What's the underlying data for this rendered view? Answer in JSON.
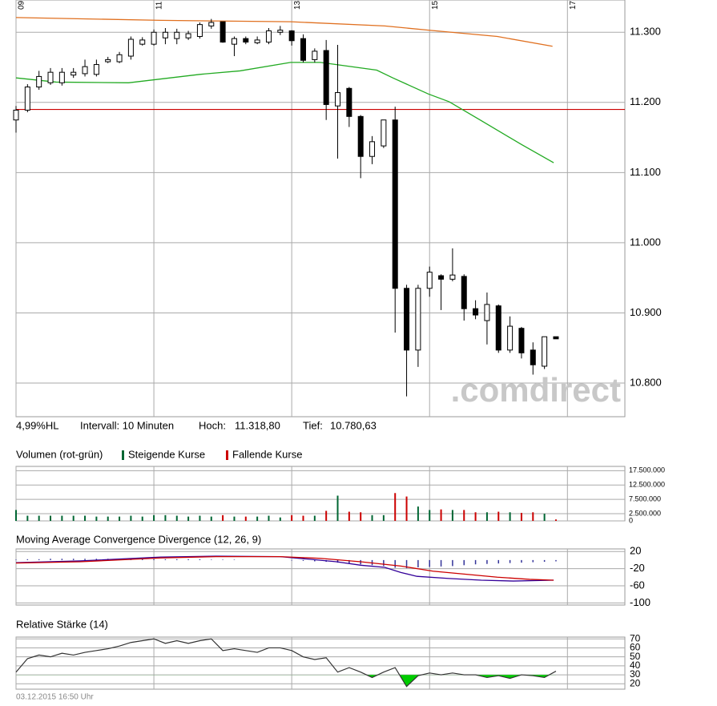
{
  "chart_data": [
    {
      "type": "candlestick",
      "info": [
        "4,99%HL",
        "Intervall: 10 Minuten",
        "Hoch:",
        "11.318,80",
        "Tief:",
        "10.780,63"
      ],
      "watermark": ".comdirect",
      "x": [
        540,
        550,
        560,
        570,
        580,
        590,
        600,
        610,
        620,
        630,
        640,
        650,
        660,
        670,
        680,
        690,
        700,
        710,
        720,
        730,
        740,
        750,
        760,
        770,
        780,
        790,
        800,
        810,
        820,
        830,
        840,
        850,
        860,
        870,
        880,
        890,
        900,
        910,
        920,
        930,
        940,
        950,
        960,
        970,
        980,
        990,
        1000,
        1010
      ],
      "open": [
        11175,
        11189,
        11222,
        11228,
        11228,
        11239,
        11241,
        11240,
        11258,
        11258,
        11266,
        11283,
        11283,
        11292,
        11291,
        11292,
        11294,
        11309,
        11315,
        11283,
        11291,
        11285,
        11286,
        11300,
        11302,
        11291,
        11261,
        11274,
        11195,
        11220,
        11180,
        11123,
        11138,
        11175,
        10935,
        10847,
        10935,
        10953,
        10948,
        10952,
        10906,
        10889,
        10910,
        10847,
        10878,
        10847,
        10824,
        10866
      ],
      "high": [
        11195,
        11226,
        11245,
        11249,
        11249,
        11249,
        11261,
        11261,
        11265,
        11272,
        11294,
        11293,
        11304,
        11306,
        11305,
        11302,
        11314,
        11319,
        11315,
        11294,
        11294,
        11294,
        11306,
        11309,
        11303,
        11297,
        11277,
        11289,
        11282,
        11222,
        11182,
        11152,
        11174,
        11194,
        10940,
        10940,
        10966,
        10955,
        10992,
        10955,
        10918,
        10929,
        10912,
        10895,
        10880,
        10858,
        10866,
        10866
      ],
      "low": [
        11157,
        11186,
        11218,
        11225,
        11224,
        11235,
        11237,
        11237,
        11256,
        11256,
        11261,
        11281,
        11281,
        11283,
        11283,
        11289,
        11291,
        11305,
        11285,
        11266,
        11283,
        11283,
        11283,
        11296,
        11281,
        11257,
        11257,
        11175,
        11120,
        11165,
        11092,
        11112,
        11135,
        10872,
        10781,
        10823,
        10923,
        10904,
        10945,
        10889,
        10891,
        10855,
        10843,
        10843,
        10835,
        10812,
        10820,
        10863
      ],
      "close": [
        11189,
        11222,
        11237,
        11243,
        11243,
        11243,
        11251,
        11254,
        11261,
        11268,
        11290,
        11289,
        11300,
        11300,
        11300,
        11298,
        11311,
        11314,
        11286,
        11291,
        11286,
        11289,
        11302,
        11303,
        11288,
        11260,
        11273,
        11197,
        11214,
        11180,
        11123,
        11144,
        11175,
        10935,
        10847,
        10935,
        10958,
        10948,
        10954,
        10906,
        10897,
        10912,
        10847,
        10881,
        10843,
        10826,
        10866,
        10863
      ],
      "lines": [
        {
          "color": "#e07020",
          "x": [
            540,
            666,
            779,
            861,
            899,
            959,
            1007
          ],
          "values": [
            11321,
            11317,
            11315,
            11309,
            11303,
            11294,
            11280
          ]
        },
        {
          "color": "#22aa22",
          "x": [
            540,
            575,
            638,
            700,
            735,
            779,
            805,
            854,
            868,
            899,
            917,
            945,
            980,
            1008
          ],
          "values": [
            11235,
            11229,
            11228,
            11240,
            11245,
            11257,
            11257,
            11246,
            11235,
            11212,
            11201,
            11174,
            11140,
            11114
          ]
        }
      ],
      "reference_line": 11190,
      "reference_color": "#cc0000",
      "xlim": [
        540,
        1070
      ],
      "xticks": [
        {
          "value": 540,
          "label": "09"
        },
        {
          "value": 660,
          "label": "11"
        },
        {
          "value": 780,
          "label": "13"
        },
        {
          "value": 900,
          "label": "15"
        },
        {
          "value": 1020,
          "label": "17"
        }
      ],
      "ylim": [
        10752,
        11346
      ],
      "yticks": [
        {
          "value": 10800,
          "label": "10.800"
        },
        {
          "value": 10900,
          "label": "10.900"
        },
        {
          "value": 11000,
          "label": "11.000"
        },
        {
          "value": 11100,
          "label": "11.100"
        },
        {
          "value": 11200,
          "label": "11.200"
        },
        {
          "value": 11300,
          "label": "11.300"
        }
      ],
      "grid": true
    },
    {
      "type": "volume",
      "title": "Volumen (rot-grün)",
      "legend": [
        {
          "label": "Steigende Kurse",
          "color": "#006633"
        },
        {
          "label": "Fallende Kurse",
          "color": "#cc0000"
        }
      ],
      "values": [
        3800000,
        1800000,
        1800000,
        1800000,
        1800000,
        1800000,
        1800000,
        1500000,
        1500000,
        1500000,
        1800000,
        1500000,
        2000000,
        2000000,
        1800000,
        1500000,
        1800000,
        1500000,
        2000000,
        1500000,
        1500000,
        1500000,
        1800000,
        1200000,
        2000000,
        1800000,
        1800000,
        3500000,
        8800000,
        3200000,
        3000000,
        2000000,
        2000000,
        9700000,
        8500000,
        5000000,
        3800000,
        4000000,
        3800000,
        3800000,
        3000000,
        3000000,
        3200000,
        3000000,
        2800000,
        3000000,
        2500000,
        500000
      ],
      "ylim": [
        0,
        19000000
      ],
      "yticks": [
        0,
        {
          "value": 2500000,
          "label": "2.500.000"
        },
        {
          "value": 7500000,
          "label": "7.500.000"
        },
        {
          "value": 12500000,
          "label": "12.500.000"
        },
        {
          "value": 17500000,
          "label": "17.500.000"
        }
      ]
    },
    {
      "type": "macd",
      "title": "Moving Average Convergence Divergence (12, 26, 9)",
      "histogram": [
        1,
        2,
        2,
        3,
        3,
        3,
        3,
        3,
        3,
        2,
        2,
        2,
        2,
        2,
        2,
        2,
        2,
        1,
        1,
        1,
        0,
        0,
        0,
        0,
        -1,
        -2,
        -3,
        -4,
        -6,
        -8,
        -10,
        -12,
        -14,
        -18,
        -19,
        -17,
        -16,
        -15,
        -14,
        -12,
        -10,
        -9,
        -8,
        -7,
        -6,
        -5,
        -4,
        -3
      ],
      "histogram_color": "#333399",
      "lines": [
        {
          "color": "#330099",
          "x": [
            540,
            596,
            666,
            714,
            770,
            791,
            819,
            840,
            861,
            875,
            889,
            917,
            945,
            973,
            1008
          ],
          "values": [
            -6,
            -2,
            7,
            9,
            8,
            3,
            -4,
            -12,
            -17,
            -29,
            -38,
            -43,
            -47,
            -49,
            -47
          ]
        },
        {
          "color": "#cc0000",
          "x": [
            540,
            596,
            666,
            714,
            770,
            805,
            840,
            875,
            903,
            931,
            959,
            987,
            1008
          ],
          "values": [
            -7,
            -4,
            5,
            8,
            8,
            4,
            -4,
            -14,
            -26,
            -33,
            -40,
            -45,
            -47
          ]
        }
      ],
      "ylim": [
        -105,
        26
      ],
      "yticks": [
        -100,
        -60,
        -20,
        20
      ]
    },
    {
      "type": "rsi",
      "title": "Relative Stärke (14)",
      "values": [
        33,
        48,
        52,
        50,
        54,
        52,
        55,
        57,
        59,
        62,
        66,
        68,
        70,
        65,
        68,
        65,
        68,
        70,
        57,
        59,
        57,
        55,
        60,
        60,
        57,
        50,
        47,
        49,
        33,
        38,
        33,
        27,
        33,
        38,
        17,
        29,
        32,
        30,
        32,
        30,
        30,
        27,
        29,
        26,
        30,
        29,
        27,
        34
      ],
      "color": "#333333",
      "fill_below": 30,
      "fill_color": "#00cc00",
      "ylim": [
        14,
        72
      ],
      "yticks": [
        20,
        30,
        40,
        50,
        60,
        70
      ]
    }
  ],
  "footer": "03.12.2015 16:50 Uhr"
}
